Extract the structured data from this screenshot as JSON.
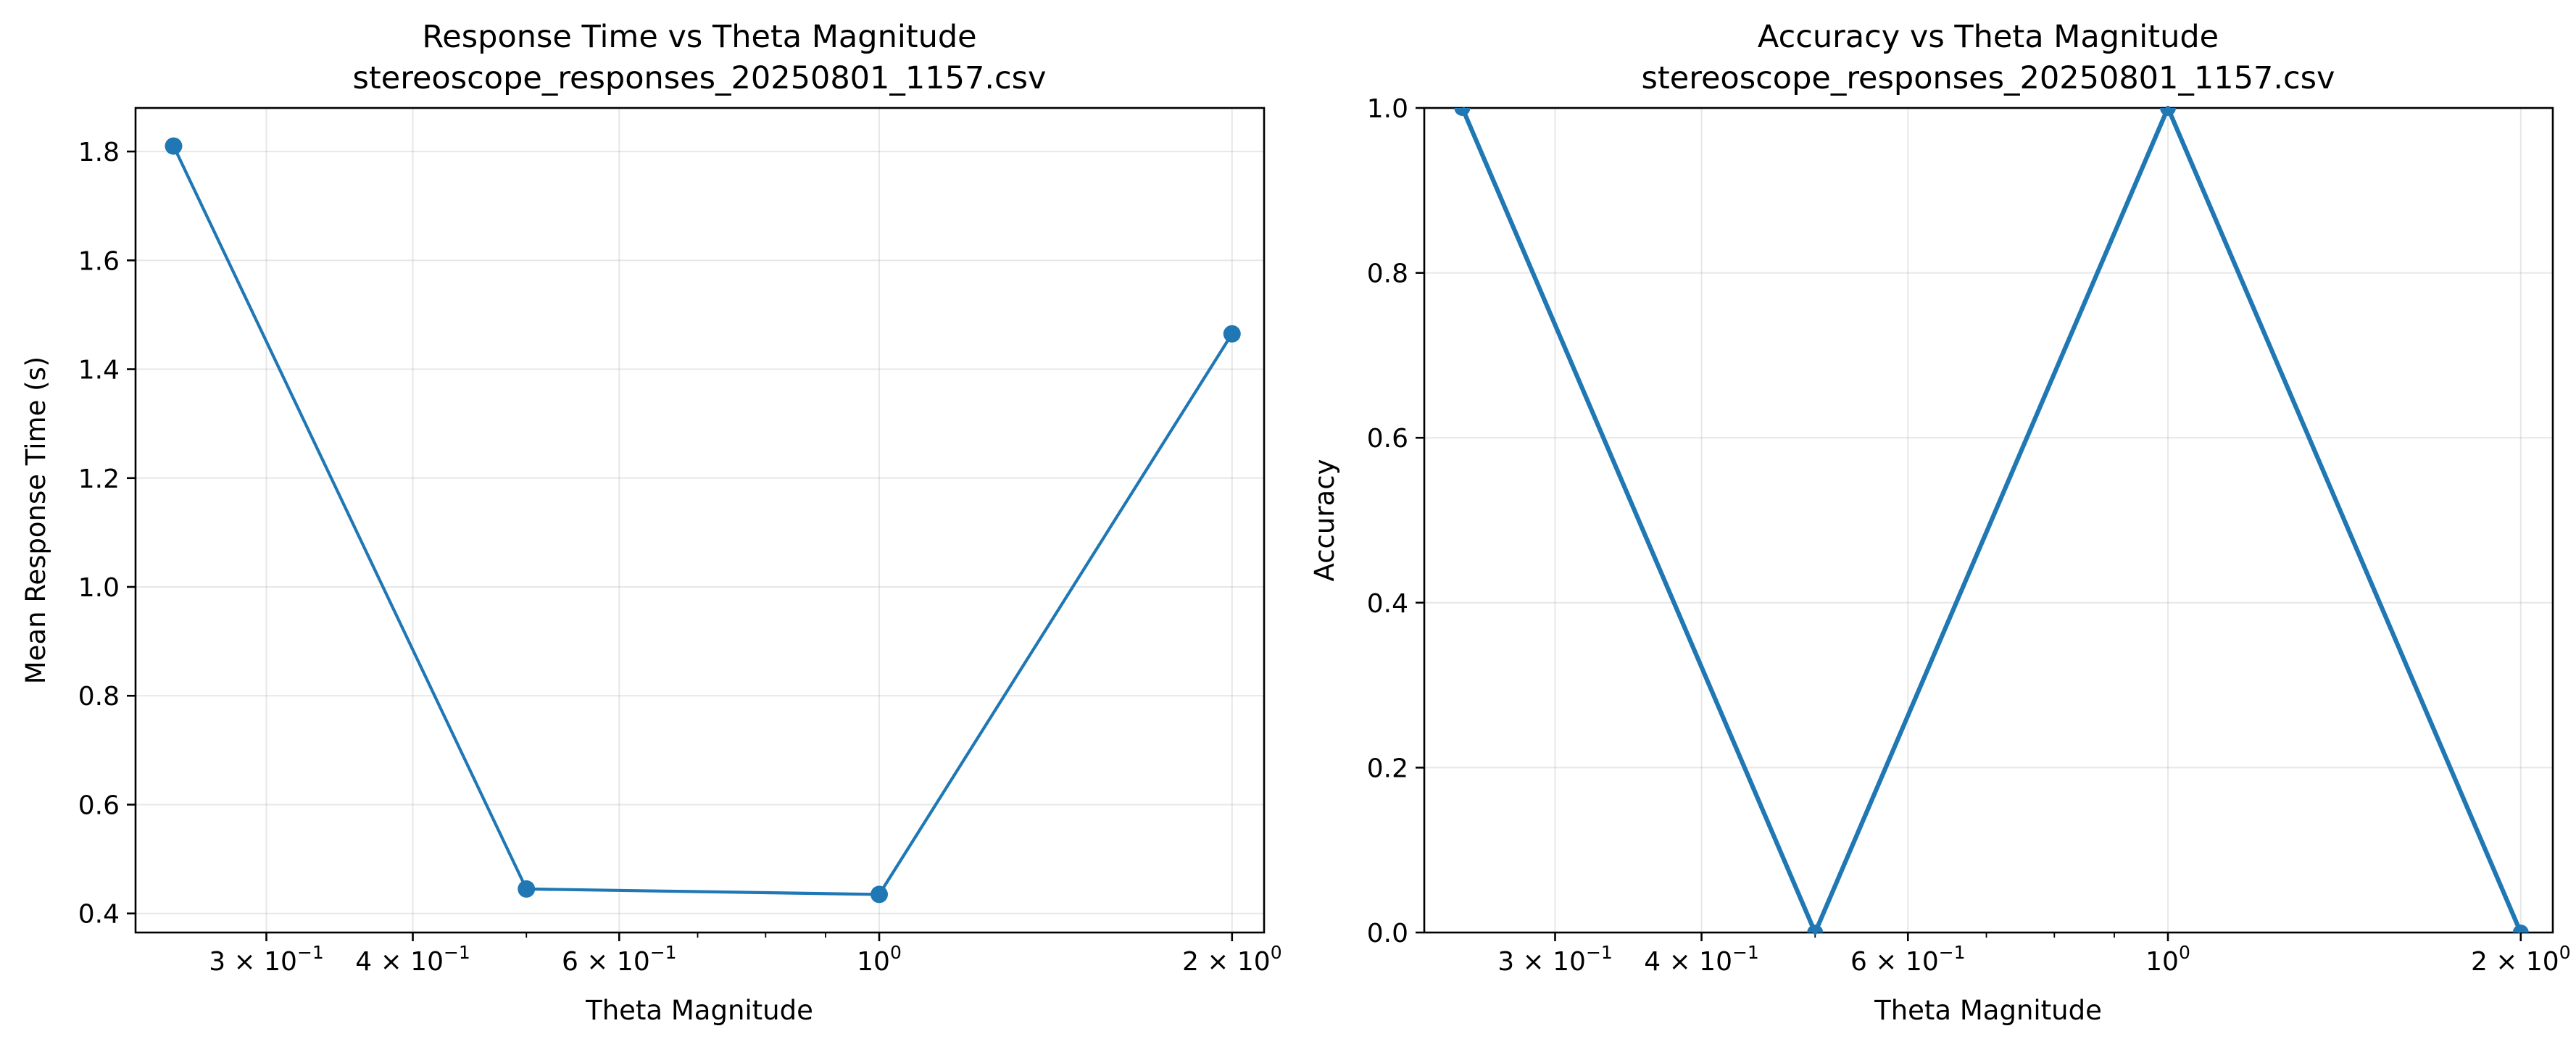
{
  "chart_data": [
    {
      "type": "line",
      "title": "Response Time vs Theta Magnitude",
      "subtitle": "stereoscope_responses_20250801_1157.csv",
      "xlabel": "Theta Magnitude",
      "ylabel": "Mean Response Time (s)",
      "xscale": "log",
      "xlim": [
        0.232,
        2.13
      ],
      "ylim": [
        0.365,
        1.88
      ],
      "grid": true,
      "color": "#1f77b4",
      "marker": "circle",
      "x": [
        0.25,
        0.5,
        1.0,
        2.0
      ],
      "y": [
        1.81,
        0.445,
        0.435,
        1.465
      ],
      "x_major_ticks": [
        {
          "value": 0.3,
          "base": "3 × 10",
          "exp": "−1"
        },
        {
          "value": 0.4,
          "base": "4 × 10",
          "exp": "−1"
        },
        {
          "value": 0.6,
          "base": "6 × 10",
          "exp": "−1"
        },
        {
          "value": 1.0,
          "base": "10",
          "exp": "0"
        },
        {
          "value": 2.0,
          "base": "2 × 10",
          "exp": "0"
        }
      ],
      "x_minor_ticks": [
        0.5,
        0.7,
        0.8,
        0.9
      ],
      "y_ticks": [
        {
          "value": 0.4,
          "label": "0.4"
        },
        {
          "value": 0.6,
          "label": "0.6"
        },
        {
          "value": 0.8,
          "label": "0.8"
        },
        {
          "value": 1.0,
          "label": "1.0"
        },
        {
          "value": 1.2,
          "label": "1.2"
        },
        {
          "value": 1.4,
          "label": "1.4"
        },
        {
          "value": 1.6,
          "label": "1.6"
        },
        {
          "value": 1.8,
          "label": "1.8"
        }
      ]
    },
    {
      "type": "line",
      "title": "Accuracy vs Theta Magnitude",
      "subtitle": "stereoscope_responses_20250801_1157.csv",
      "xlabel": "Theta Magnitude",
      "ylabel": "Accuracy",
      "xscale": "log",
      "xlim": [
        0.232,
        2.13
      ],
      "ylim": [
        0.0,
        1.0
      ],
      "grid": true,
      "color": "#1f77b4",
      "marker": "circle",
      "x": [
        0.25,
        0.5,
        1.0,
        2.0
      ],
      "y": [
        1.0,
        0.0,
        1.0,
        0.0
      ],
      "x_major_ticks": [
        {
          "value": 0.3,
          "base": "3 × 10",
          "exp": "−1"
        },
        {
          "value": 0.4,
          "base": "4 × 10",
          "exp": "−1"
        },
        {
          "value": 0.6,
          "base": "6 × 10",
          "exp": "−1"
        },
        {
          "value": 1.0,
          "base": "10",
          "exp": "0"
        },
        {
          "value": 2.0,
          "base": "2 × 10",
          "exp": "0"
        }
      ],
      "x_minor_ticks": [
        0.5,
        0.7,
        0.8,
        0.9
      ],
      "y_ticks": [
        {
          "value": 0.0,
          "label": "0.0"
        },
        {
          "value": 0.2,
          "label": "0.2"
        },
        {
          "value": 0.4,
          "label": "0.4"
        },
        {
          "value": 0.6,
          "label": "0.6"
        },
        {
          "value": 0.8,
          "label": "0.8"
        },
        {
          "value": 1.0,
          "label": "1.0"
        }
      ]
    }
  ]
}
